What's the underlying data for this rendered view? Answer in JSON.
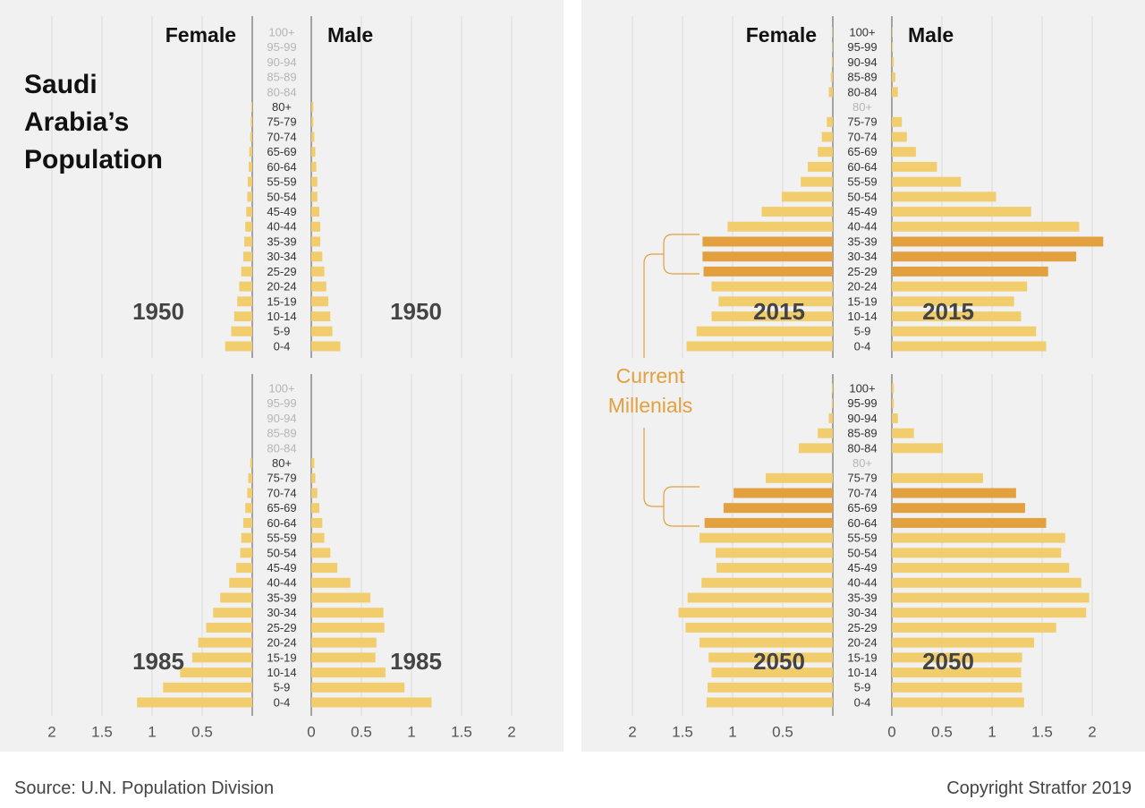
{
  "title": "Saudi Arabia’s Population",
  "annotation": "Current Millenials",
  "source": "Source: U.N. Population Division",
  "copyright": "Copyright Stratfor 2019",
  "chart_data": [
    {
      "type": "pyramid",
      "year": "1950",
      "tick_labels": false,
      "categories": [
        "0-4",
        "5-9",
        "10-14",
        "15-19",
        "20-24",
        "25-29",
        "30-34",
        "35-39",
        "40-44",
        "45-49",
        "50-54",
        "55-59",
        "60-64",
        "65-69",
        "70-74",
        "75-79",
        "80+",
        "80-84",
        "85-89",
        "90-94",
        "95-99",
        "100+"
      ],
      "series": [
        {
          "name": "Female",
          "color": "#f2cd6d",
          "values": [
            0.27,
            0.21,
            0.18,
            0.15,
            0.13,
            0.11,
            0.09,
            0.08,
            0.07,
            0.06,
            0.05,
            0.045,
            0.035,
            0.03,
            0.02,
            0.015,
            0.01,
            null,
            null,
            null,
            null,
            null
          ]
        },
        {
          "name": "Male",
          "color": "#f2cd6d",
          "values": [
            0.29,
            0.21,
            0.19,
            0.17,
            0.15,
            0.13,
            0.11,
            0.09,
            0.09,
            0.08,
            0.06,
            0.06,
            0.05,
            0.04,
            0.03,
            0.02,
            0.02,
            null,
            null,
            null,
            null,
            null
          ]
        }
      ],
      "xlim": [
        0,
        2.5
      ],
      "xticks": [
        0,
        0.5,
        1,
        1.5,
        2
      ],
      "xticks_female": [
        0.5,
        1,
        1.5,
        2
      ],
      "grid": true
    },
    {
      "type": "pyramid",
      "year": "1985",
      "tick_labels": true,
      "categories": [
        "0-4",
        "5-9",
        "10-14",
        "15-19",
        "20-24",
        "25-29",
        "30-34",
        "35-39",
        "40-44",
        "45-49",
        "50-54",
        "55-59",
        "60-64",
        "65-69",
        "70-74",
        "75-79",
        "80+",
        "80-84",
        "85-89",
        "90-94",
        "95-99",
        "100+"
      ],
      "series": [
        {
          "color": "#f2cd6d",
          "values": [
            1.15,
            0.89,
            0.72,
            0.6,
            0.54,
            0.46,
            0.39,
            0.32,
            0.23,
            0.16,
            0.12,
            0.11,
            0.09,
            0.07,
            0.05,
            0.04,
            0.02,
            null,
            null,
            null,
            null,
            null
          ]
        },
        {
          "color": "#f2cd6d",
          "values": [
            1.2,
            0.93,
            0.74,
            0.64,
            0.65,
            0.73,
            0.72,
            0.59,
            0.39,
            0.26,
            0.19,
            0.13,
            0.11,
            0.08,
            0.06,
            0.04,
            0.03,
            null,
            null,
            null,
            null,
            null
          ]
        }
      ],
      "xlim": [
        0,
        2.5
      ],
      "xticks": [
        0,
        0.5,
        1,
        1.5,
        2
      ],
      "xticks_female": [
        0.5,
        1,
        1.5,
        2
      ],
      "grid": true
    },
    {
      "type": "pyramid",
      "year": "2015",
      "tick_labels": false,
      "highlight_color": "#e3a03e",
      "highlight": [
        5,
        6,
        7
      ],
      "categories": [
        "0-4",
        "5-9",
        "10-14",
        "15-19",
        "20-24",
        "25-29",
        "30-34",
        "35-39",
        "40-44",
        "45-49",
        "50-54",
        "55-59",
        "60-64",
        "65-69",
        "70-74",
        "75-79",
        "80+",
        "80-84",
        "85-89",
        "90-94",
        "95-99",
        "100+"
      ],
      "series": [
        {
          "name": "Female",
          "color": "#f2cd6d",
          "values": [
            1.46,
            1.36,
            1.21,
            1.14,
            1.21,
            1.29,
            1.3,
            1.3,
            1.05,
            0.71,
            0.51,
            0.32,
            0.25,
            0.15,
            0.11,
            0.06,
            null,
            0.04,
            0.02,
            0.01,
            0.005,
            0.005
          ]
        },
        {
          "name": "Male",
          "color": "#f2cd6d",
          "values": [
            1.54,
            1.44,
            1.29,
            1.22,
            1.35,
            1.56,
            1.84,
            2.11,
            1.87,
            1.39,
            1.04,
            0.69,
            0.45,
            0.24,
            0.15,
            0.1,
            null,
            0.06,
            0.035,
            0.02,
            0.01,
            0.005
          ]
        }
      ],
      "xlim": [
        0,
        2.5
      ],
      "xticks": [
        0,
        0.5,
        1,
        1.5,
        2
      ],
      "xticks_female": [
        0.5,
        1,
        1.5,
        2
      ],
      "grid": true
    },
    {
      "type": "pyramid",
      "year": "2050",
      "tick_labels": true,
      "highlight_color": "#e3a03e",
      "highlight": [
        12,
        13,
        14
      ],
      "categories": [
        "0-4",
        "5-9",
        "10-14",
        "15-19",
        "20-24",
        "25-29",
        "30-34",
        "35-39",
        "40-44",
        "45-49",
        "50-54",
        "55-59",
        "60-64",
        "65-69",
        "70-74",
        "75-79",
        "80+",
        "80-84",
        "85-89",
        "90-94",
        "95-99",
        "100+"
      ],
      "series": [
        {
          "color": "#f2cd6d",
          "values": [
            1.26,
            1.25,
            1.21,
            1.24,
            1.33,
            1.47,
            1.54,
            1.45,
            1.31,
            1.16,
            1.17,
            1.33,
            1.28,
            1.09,
            0.99,
            0.67,
            null,
            0.34,
            0.15,
            0.04,
            0.01,
            0.01
          ]
        },
        {
          "color": "#f2cd6d",
          "values": [
            1.32,
            1.3,
            1.29,
            1.3,
            1.42,
            1.64,
            1.94,
            1.97,
            1.89,
            1.77,
            1.69,
            1.73,
            1.54,
            1.33,
            1.24,
            0.91,
            null,
            0.51,
            0.22,
            0.06,
            0.02,
            0.02
          ]
        }
      ],
      "xlim": [
        0,
        2.5
      ],
      "xticks": [
        0,
        0.5,
        1,
        1.5,
        2
      ],
      "xticks_female": [
        0.5,
        1,
        1.5,
        2
      ],
      "grid": true
    }
  ]
}
